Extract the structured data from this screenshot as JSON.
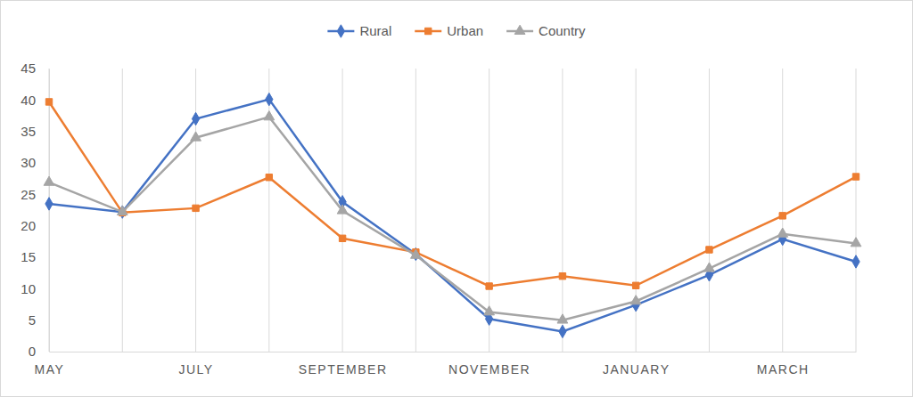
{
  "chart_data": {
    "type": "line",
    "categories": [
      "MAY",
      null,
      "JULY",
      null,
      "SEPTEMBER",
      null,
      "NOVEMBER",
      null,
      "JANUARY",
      null,
      "MARCH",
      null
    ],
    "series": [
      {
        "name": "Rural",
        "color": "#4472c4",
        "marker": "diamond",
        "values": [
          23.5,
          22.2,
          37,
          40.1,
          23.8,
          15.5,
          5.2,
          3.2,
          7.4,
          12.2,
          17.9,
          14.3
        ]
      },
      {
        "name": "Urban",
        "color": "#ed7d31",
        "marker": "square",
        "values": [
          39.7,
          22.1,
          22.8,
          27.7,
          18,
          15.8,
          10.4,
          12,
          10.5,
          16.2,
          21.6,
          27.8
        ]
      },
      {
        "name": "Country",
        "color": "#a5a5a5",
        "marker": "triangle",
        "values": [
          26.9,
          22.2,
          34,
          37.3,
          22.4,
          15.3,
          6.3,
          5,
          8,
          13.2,
          18.7,
          17.2
        ]
      }
    ],
    "ylim": [
      0,
      45
    ],
    "yticks": [
      0,
      5,
      10,
      15,
      20,
      25,
      30,
      35,
      40,
      45
    ],
    "grid": true,
    "legend": "top"
  }
}
